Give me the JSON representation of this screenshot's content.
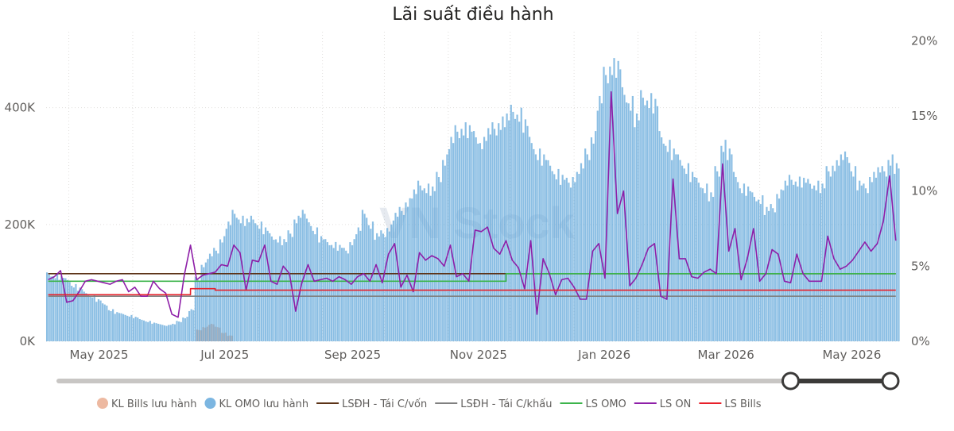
{
  "chart_data": {
    "type": "bar",
    "title": "Lãi suất điều hành",
    "xlabel": "",
    "ylabel": "",
    "ylabel_right": "",
    "x_tick_labels": [
      "May 2025",
      "Jul 2025",
      "Sep 2025",
      "Nov 2025",
      "Jan 2026",
      "Mar 2026",
      "May 2026"
    ],
    "y_left": {
      "ticks": [
        0,
        200000,
        400000
      ],
      "tick_labels": [
        "0K",
        "200K",
        "400K"
      ],
      "ylim": [
        0,
        530000
      ]
    },
    "y_right": {
      "ticks": [
        0,
        5,
        10,
        15,
        20
      ],
      "tick_labels": [
        "0%",
        "5%",
        "10%",
        "15%",
        "20%"
      ],
      "ylim": [
        0,
        20.6
      ]
    },
    "grid": true,
    "legend_position": "bottom",
    "x": [
      "2025-04-21",
      "2025-04-24",
      "2025-04-27",
      "2025-04-30",
      "2025-05-03",
      "2025-05-06",
      "2025-05-09",
      "2025-05-12",
      "2025-05-15",
      "2025-05-18",
      "2025-05-21",
      "2025-05-24",
      "2025-05-27",
      "2025-05-30",
      "2025-06-02",
      "2025-06-05",
      "2025-06-08",
      "2025-06-11",
      "2025-06-14",
      "2025-06-17",
      "2025-06-20",
      "2025-06-23",
      "2025-06-26",
      "2025-06-29",
      "2025-07-02",
      "2025-07-05",
      "2025-07-08",
      "2025-07-11",
      "2025-07-14",
      "2025-07-17",
      "2025-07-20",
      "2025-07-23",
      "2025-07-26",
      "2025-07-29",
      "2025-08-01",
      "2025-08-04",
      "2025-08-07",
      "2025-08-10",
      "2025-08-13",
      "2025-08-16",
      "2025-08-19",
      "2025-08-22",
      "2025-08-25",
      "2025-08-28",
      "2025-08-31",
      "2025-09-03",
      "2025-09-06",
      "2025-09-09",
      "2025-09-12",
      "2025-09-15",
      "2025-09-18",
      "2025-09-21",
      "2025-09-24",
      "2025-09-27",
      "2025-09-30",
      "2025-10-03",
      "2025-10-06",
      "2025-10-09",
      "2025-10-12",
      "2025-10-15",
      "2025-10-18",
      "2025-10-21",
      "2025-10-24",
      "2025-10-27",
      "2025-10-30",
      "2025-11-02",
      "2025-11-05",
      "2025-11-08",
      "2025-11-11",
      "2025-11-14",
      "2025-11-17",
      "2025-11-20",
      "2025-11-23",
      "2025-11-26",
      "2025-11-29",
      "2025-12-02",
      "2025-12-05",
      "2025-12-08",
      "2025-12-11",
      "2025-12-14",
      "2025-12-17",
      "2025-12-20",
      "2025-12-23",
      "2025-12-26",
      "2025-12-29",
      "2026-01-01",
      "2026-01-04",
      "2026-01-07",
      "2026-01-10",
      "2026-01-13",
      "2026-01-16",
      "2026-01-19",
      "2026-01-22",
      "2026-01-25",
      "2026-01-28",
      "2026-01-31",
      "2026-02-03",
      "2026-02-06",
      "2026-02-09",
      "2026-02-12",
      "2026-02-15",
      "2026-02-18",
      "2026-02-21",
      "2026-02-24",
      "2026-02-27",
      "2026-03-02",
      "2026-03-05",
      "2026-03-08",
      "2026-03-11",
      "2026-03-14",
      "2026-03-17",
      "2026-03-20",
      "2026-03-23",
      "2026-03-26",
      "2026-03-29",
      "2026-04-01",
      "2026-04-04",
      "2026-04-07",
      "2026-04-10",
      "2026-04-13",
      "2026-04-16",
      "2026-04-19",
      "2026-04-22",
      "2026-04-25",
      "2026-04-28",
      "2026-05-01",
      "2026-05-04",
      "2026-05-07",
      "2026-05-10",
      "2026-05-13",
      "2026-05-16",
      "2026-05-19",
      "2026-05-22",
      "2026-05-25",
      "2026-05-28",
      "2026-05-31",
      "2026-06-03",
      "2026-06-06"
    ],
    "series": [
      {
        "name": "KL Bills lưu hành",
        "kind": "bar",
        "axis": "left",
        "color": "#E8A88A",
        "values": [
          0,
          0,
          0,
          0,
          0,
          0,
          0,
          0,
          0,
          0,
          0,
          0,
          0,
          0,
          0,
          0,
          0,
          0,
          0,
          0,
          0,
          0,
          0,
          0,
          20000,
          25000,
          30000,
          25000,
          15000,
          10000,
          0,
          0,
          0,
          0,
          0,
          0,
          0,
          0,
          0,
          0,
          0,
          0,
          0,
          0,
          0,
          0,
          0,
          0,
          0,
          0,
          0,
          0,
          0,
          0,
          0,
          0,
          0,
          0,
          0,
          0,
          0,
          0,
          0,
          0,
          0,
          0,
          0,
          0,
          0,
          0,
          0,
          0,
          0,
          0,
          0,
          0,
          0,
          0,
          0,
          0,
          0,
          0,
          0,
          0,
          0,
          0,
          0,
          0,
          0,
          0,
          0,
          0,
          0,
          0,
          0,
          0,
          0,
          0,
          0,
          0,
          0,
          0,
          0,
          0,
          0,
          0,
          0,
          0,
          0,
          0,
          0,
          0,
          0,
          0,
          0,
          0,
          0,
          0,
          0,
          0,
          0,
          0,
          0,
          0,
          0,
          0,
          0,
          0,
          0,
          0,
          0,
          0,
          0,
          0,
          0,
          0,
          0,
          0
        ]
      },
      {
        "name": "KL OMO lưu hành",
        "kind": "bar",
        "axis": "left",
        "color": "#5BA4D9",
        "values": [
          118000,
          115000,
          112000,
          108000,
          98000,
          92000,
          85000,
          80000,
          72000,
          65000,
          55000,
          50000,
          48000,
          45000,
          42000,
          38000,
          35000,
          32000,
          30000,
          28000,
          30000,
          35000,
          42000,
          55000,
          110000,
          135000,
          150000,
          160000,
          180000,
          205000,
          225000,
          215000,
          210000,
          215000,
          205000,
          195000,
          185000,
          180000,
          175000,
          190000,
          215000,
          225000,
          210000,
          195000,
          180000,
          175000,
          170000,
          165000,
          160000,
          175000,
          195000,
          225000,
          205000,
          185000,
          190000,
          200000,
          220000,
          230000,
          245000,
          260000,
          275000,
          270000,
          265000,
          290000,
          320000,
          350000,
          370000,
          375000,
          370000,
          360000,
          350000,
          365000,
          375000,
          385000,
          390000,
          405000,
          400000,
          380000,
          350000,
          330000,
          320000,
          310000,
          295000,
          285000,
          280000,
          290000,
          305000,
          330000,
          360000,
          420000,
          470000,
          485000,
          480000,
          435000,
          420000,
          390000,
          430000,
          425000,
          415000,
          360000,
          345000,
          330000,
          320000,
          305000,
          290000,
          280000,
          270000,
          255000,
          300000,
          345000,
          330000,
          290000,
          270000,
          265000,
          255000,
          250000,
          230000,
          235000,
          260000,
          275000,
          285000,
          282000,
          280000,
          278000,
          275000,
          270000,
          300000,
          310000,
          320000,
          325000,
          300000,
          275000,
          270000,
          290000,
          298000,
          300000,
          320000,
          305000
        ]
      },
      {
        "name": "LSĐH - Tái C/vốn",
        "kind": "line",
        "axis": "right",
        "color": "#5C3317",
        "values": [
          4.5,
          4.5,
          4.5,
          4.5,
          4.5,
          4.5,
          4.5,
          4.5,
          4.5,
          4.5,
          4.5,
          4.5,
          4.5,
          4.5,
          4.5,
          4.5,
          4.5,
          4.5,
          4.5,
          4.5,
          4.5,
          4.5,
          4.5,
          4.5,
          4.5,
          4.5,
          4.5,
          4.5,
          4.5,
          4.5,
          4.5,
          4.5,
          4.5,
          4.5,
          4.5,
          4.5,
          4.5,
          4.5,
          4.5,
          4.5,
          4.5,
          4.5,
          4.5,
          4.5,
          4.5,
          4.5,
          4.5,
          4.5,
          4.5,
          4.5,
          4.5,
          4.5,
          4.5,
          4.5,
          4.5,
          4.5,
          4.5,
          4.5,
          4.5,
          4.5,
          4.5,
          4.5,
          4.5,
          4.5,
          4.5,
          4.5,
          4.5,
          4.5,
          4.5,
          4.5,
          4.5,
          4.5,
          4.5,
          4.5,
          4.5,
          4.5,
          4.5,
          4.5,
          4.5,
          4.5,
          4.5,
          4.5,
          4.5,
          4.5,
          4.5,
          4.5,
          4.5,
          4.5,
          4.5,
          4.5,
          4.5,
          4.5,
          4.5,
          4.5,
          4.5,
          4.5,
          4.5,
          4.5,
          4.5,
          4.5,
          4.5,
          4.5,
          4.5,
          4.5,
          4.5,
          4.5,
          4.5,
          4.5,
          4.5,
          4.5,
          4.5,
          4.5,
          4.5,
          4.5,
          4.5,
          4.5,
          4.5,
          4.5,
          4.5,
          4.5,
          4.5,
          4.5,
          4.5,
          4.5,
          4.5,
          4.5,
          4.5,
          4.5,
          4.5,
          4.5,
          4.5,
          4.5,
          4.5,
          4.5,
          4.5,
          4.5,
          4.5,
          4.5
        ]
      },
      {
        "name": "LSĐH - Tái C/khấu",
        "kind": "line",
        "axis": "right",
        "color": "#808080",
        "values": [
          3.0,
          3.0,
          3.0,
          3.0,
          3.0,
          3.0,
          3.0,
          3.0,
          3.0,
          3.0,
          3.0,
          3.0,
          3.0,
          3.0,
          3.0,
          3.0,
          3.0,
          3.0,
          3.0,
          3.0,
          3.0,
          3.0,
          3.0,
          3.0,
          3.0,
          3.0,
          3.0,
          3.0,
          3.0,
          3.0,
          3.0,
          3.0,
          3.0,
          3.0,
          3.0,
          3.0,
          3.0,
          3.0,
          3.0,
          3.0,
          3.0,
          3.0,
          3.0,
          3.0,
          3.0,
          3.0,
          3.0,
          3.0,
          3.0,
          3.0,
          3.0,
          3.0,
          3.0,
          3.0,
          3.0,
          3.0,
          3.0,
          3.0,
          3.0,
          3.0,
          3.0,
          3.0,
          3.0,
          3.0,
          3.0,
          3.0,
          3.0,
          3.0,
          3.0,
          3.0,
          3.0,
          3.0,
          3.0,
          3.0,
          3.0,
          3.0,
          3.0,
          3.0,
          3.0,
          3.0,
          3.0,
          3.0,
          3.0,
          3.0,
          3.0,
          3.0,
          3.0,
          3.0,
          3.0,
          3.0,
          3.0,
          3.0,
          3.0,
          3.0,
          3.0,
          3.0,
          3.0,
          3.0,
          3.0,
          3.0,
          3.0,
          3.0,
          3.0,
          3.0,
          3.0,
          3.0,
          3.0,
          3.0,
          3.0,
          3.0,
          3.0,
          3.0,
          3.0,
          3.0,
          3.0,
          3.0,
          3.0,
          3.0,
          3.0,
          3.0,
          3.0,
          3.0,
          3.0,
          3.0,
          3.0,
          3.0,
          3.0,
          3.0,
          3.0,
          3.0,
          3.0,
          3.0,
          3.0,
          3.0,
          3.0,
          3.0,
          3.0,
          3.0
        ]
      },
      {
        "name": "LS OMO",
        "kind": "line",
        "axis": "right",
        "color": "#3CB44B",
        "values": [
          4.0,
          4.0,
          4.0,
          4.0,
          4.0,
          4.0,
          4.0,
          4.0,
          4.0,
          4.0,
          4.0,
          4.0,
          4.0,
          4.0,
          4.0,
          4.0,
          4.0,
          4.0,
          4.0,
          4.0,
          4.0,
          4.0,
          4.0,
          4.0,
          4.0,
          4.0,
          4.0,
          4.0,
          4.0,
          4.0,
          4.0,
          4.0,
          4.0,
          4.0,
          4.0,
          4.0,
          4.0,
          4.0,
          4.0,
          4.0,
          4.0,
          4.0,
          4.0,
          4.0,
          4.0,
          4.0,
          4.0,
          4.0,
          4.0,
          4.0,
          4.0,
          4.0,
          4.0,
          4.0,
          4.0,
          4.0,
          4.0,
          4.0,
          4.0,
          4.0,
          4.0,
          4.0,
          4.0,
          4.0,
          4.0,
          4.0,
          4.0,
          4.0,
          4.0,
          4.0,
          4.0,
          4.0,
          4.0,
          4.0,
          4.5,
          4.5,
          4.5,
          4.5,
          4.5,
          4.5,
          4.5,
          4.5,
          4.5,
          4.5,
          4.5,
          4.5,
          4.5,
          4.5,
          4.5,
          4.5,
          4.5,
          4.5,
          4.5,
          4.5,
          4.5,
          4.5,
          4.5,
          4.5,
          4.5,
          4.5,
          4.5,
          4.5,
          4.5,
          4.5,
          4.5,
          4.5,
          4.5,
          4.5,
          4.5,
          4.5,
          4.5,
          4.5,
          4.5,
          4.5,
          4.5,
          4.5,
          4.5,
          4.5,
          4.5,
          4.5,
          4.5,
          4.5,
          4.5,
          4.5,
          4.5,
          4.5,
          4.5,
          4.5,
          4.5,
          4.5,
          4.5,
          4.5,
          4.5,
          4.5,
          4.5,
          4.5,
          4.5,
          4.5
        ]
      },
      {
        "name": "LS ON",
        "kind": "line",
        "axis": "right",
        "color": "#8E1FA8",
        "values": [
          4.1,
          4.3,
          4.7,
          2.6,
          2.7,
          3.3,
          4.0,
          4.1,
          4.0,
          3.9,
          3.8,
          4.0,
          4.1,
          3.3,
          3.6,
          3.0,
          3.0,
          4.0,
          3.5,
          3.2,
          1.8,
          1.6,
          4.4,
          6.4,
          4.1,
          4.4,
          4.5,
          4.6,
          5.1,
          5.0,
          6.4,
          5.9,
          3.4,
          5.4,
          5.3,
          6.4,
          4.0,
          3.8,
          5.0,
          4.5,
          2.0,
          3.9,
          5.1,
          4.0,
          4.1,
          4.2,
          4.0,
          4.3,
          4.1,
          3.8,
          4.3,
          4.5,
          4.0,
          5.1,
          3.9,
          5.8,
          6.5,
          3.6,
          4.4,
          3.3,
          5.9,
          5.4,
          5.7,
          5.5,
          5.0,
          6.4,
          4.3,
          4.5,
          4.0,
          7.4,
          7.3,
          7.6,
          6.2,
          5.8,
          6.7,
          5.4,
          4.9,
          3.5,
          6.7,
          1.8,
          5.5,
          4.5,
          3.1,
          4.1,
          4.2,
          3.6,
          2.8,
          2.8,
          6.0,
          6.5,
          4.2,
          16.6,
          8.5,
          10.0,
          3.7,
          4.2,
          5.1,
          6.2,
          6.5,
          3.0,
          2.8,
          10.8,
          5.5,
          5.5,
          4.3,
          4.2,
          4.6,
          4.8,
          4.5,
          11.8,
          6.0,
          7.5,
          4.1,
          5.5,
          7.5,
          4.0,
          4.5,
          6.1,
          5.8,
          4.0,
          3.9,
          5.8,
          4.5,
          4.0,
          4.0,
          4.0,
          7.0,
          5.5,
          4.8,
          5.0,
          5.4,
          6.0,
          6.6,
          6.0,
          6.5,
          8.0,
          11.0,
          6.7
        ]
      },
      {
        "name": "LS Bills",
        "kind": "line",
        "axis": "right",
        "color": "#E8202A",
        "values": [
          3.1,
          3.1,
          3.1,
          3.1,
          3.1,
          3.1,
          3.1,
          3.1,
          3.1,
          3.1,
          3.1,
          3.1,
          3.1,
          3.1,
          3.1,
          3.1,
          3.1,
          3.1,
          3.1,
          3.1,
          3.1,
          3.1,
          3.1,
          3.5,
          3.5,
          3.5,
          3.5,
          3.4,
          3.4,
          3.4,
          3.4,
          3.4,
          3.4,
          3.4,
          3.4,
          3.4,
          3.4,
          3.4,
          3.4,
          3.4,
          3.4,
          3.4,
          3.4,
          3.4,
          3.4,
          3.4,
          3.4,
          3.4,
          3.4,
          3.4,
          3.4,
          3.4,
          3.4,
          3.4,
          3.4,
          3.4,
          3.4,
          3.4,
          3.4,
          3.4,
          3.4,
          3.4,
          3.4,
          3.4,
          3.4,
          3.4,
          3.4,
          3.4,
          3.4,
          3.4,
          3.4,
          3.4,
          3.4,
          3.4,
          3.4,
          3.4,
          3.4,
          3.4,
          3.4,
          3.4,
          3.4,
          3.4,
          3.4,
          3.4,
          3.4,
          3.4,
          3.4,
          3.4,
          3.4,
          3.4,
          3.4,
          3.4,
          3.4,
          3.4,
          3.4,
          3.4,
          3.4,
          3.4,
          3.4,
          3.4,
          3.4,
          3.4,
          3.4,
          3.4,
          3.4,
          3.4,
          3.4,
          3.4,
          3.4,
          3.4,
          3.4,
          3.4,
          3.4,
          3.4,
          3.4,
          3.4,
          3.4,
          3.4,
          3.4,
          3.4,
          3.4,
          3.4,
          3.4,
          3.4,
          3.4,
          3.4,
          3.4,
          3.4,
          3.4,
          3.4,
          3.4,
          3.4,
          3.4,
          3.4,
          3.4,
          3.4,
          3.4,
          3.4
        ]
      }
    ]
  },
  "slider": {
    "range_start_fraction": 0.88,
    "range_end_fraction": 1.0,
    "track_color": "#c8c6c4",
    "active_color": "#3b3a39"
  },
  "watermark": {
    "text": "VN Stock"
  }
}
